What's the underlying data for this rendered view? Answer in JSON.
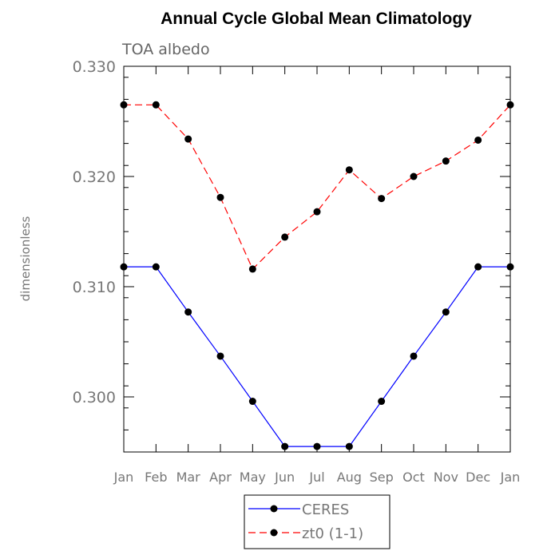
{
  "chart_data": {
    "type": "line",
    "title": "Annual Cycle Global Mean Climatology",
    "subtitle": "TOA albedo",
    "xlabel": "",
    "ylabel": "dimensionless",
    "ylim": [
      0.295,
      0.33
    ],
    "yticks": [
      0.3,
      0.31,
      0.32,
      0.33
    ],
    "ytick_labels": [
      "0.300",
      "0.310",
      "0.320",
      "0.330"
    ],
    "categories": [
      "Jan",
      "Feb",
      "Mar",
      "Apr",
      "May",
      "Jun",
      "Jul",
      "Aug",
      "Sep",
      "Oct",
      "Nov",
      "Dec",
      "Jan"
    ],
    "grid": false,
    "legend_position": "bottom-center",
    "series": [
      {
        "name": "CERES",
        "color": "#0000ff",
        "dashed": false,
        "values": [
          0.3118,
          0.3118,
          0.3077,
          0.3037,
          0.2996,
          0.2955,
          0.2955,
          0.2955,
          0.2996,
          0.3037,
          0.3077,
          0.3118,
          0.3118
        ]
      },
      {
        "name": "zt0 (1-1)",
        "color": "#ff0000",
        "dashed": true,
        "values": [
          0.3265,
          0.3265,
          0.3234,
          0.3181,
          0.3116,
          0.3145,
          0.3168,
          0.3206,
          0.318,
          0.32,
          0.3214,
          0.3233,
          0.3265
        ]
      }
    ]
  }
}
